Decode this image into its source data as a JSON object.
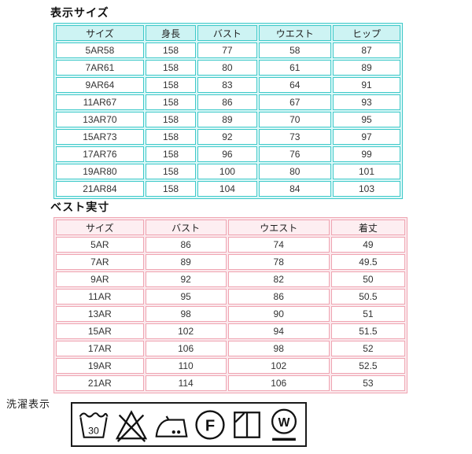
{
  "size_table": {
    "title": "表示サイズ",
    "columns": [
      "サイズ",
      "身長",
      "バスト",
      "ウエスト",
      "ヒップ"
    ],
    "rows": [
      [
        "5AR58",
        "158",
        "77",
        "58",
        "87"
      ],
      [
        "7AR61",
        "158",
        "80",
        "61",
        "89"
      ],
      [
        "9AR64",
        "158",
        "83",
        "64",
        "91"
      ],
      [
        "11AR67",
        "158",
        "86",
        "67",
        "93"
      ],
      [
        "13AR70",
        "158",
        "89",
        "70",
        "95"
      ],
      [
        "15AR73",
        "158",
        "92",
        "73",
        "97"
      ],
      [
        "17AR76",
        "158",
        "96",
        "76",
        "99"
      ],
      [
        "19AR80",
        "158",
        "100",
        "80",
        "101"
      ],
      [
        "21AR84",
        "158",
        "104",
        "84",
        "103"
      ]
    ],
    "colors": {
      "border": "#3ec9c9",
      "header_bg": "#cdf3f3",
      "table_bg": "#dcf8f8"
    }
  },
  "vest_table": {
    "title": "ベスト実寸",
    "columns": [
      "サイズ",
      "バスト",
      "ウエスト",
      "着丈"
    ],
    "rows": [
      [
        "5AR",
        "86",
        "74",
        "49"
      ],
      [
        "7AR",
        "89",
        "78",
        "49.5"
      ],
      [
        "9AR",
        "92",
        "82",
        "50"
      ],
      [
        "11AR",
        "95",
        "86",
        "50.5"
      ],
      [
        "13AR",
        "98",
        "90",
        "51"
      ],
      [
        "15AR",
        "102",
        "94",
        "51.5"
      ],
      [
        "17AR",
        "106",
        "98",
        "52"
      ],
      [
        "19AR",
        "110",
        "102",
        "52.5"
      ],
      [
        "21AR",
        "114",
        "106",
        "53"
      ]
    ],
    "colors": {
      "border": "#efa5b2",
      "header_bg": "#fdeef1",
      "table_bg": "#fbe9ed"
    }
  },
  "care": {
    "label": "洗濯表示",
    "wash_temp": "30",
    "dryclean_letter": "F",
    "wetclean_letter": "W"
  }
}
